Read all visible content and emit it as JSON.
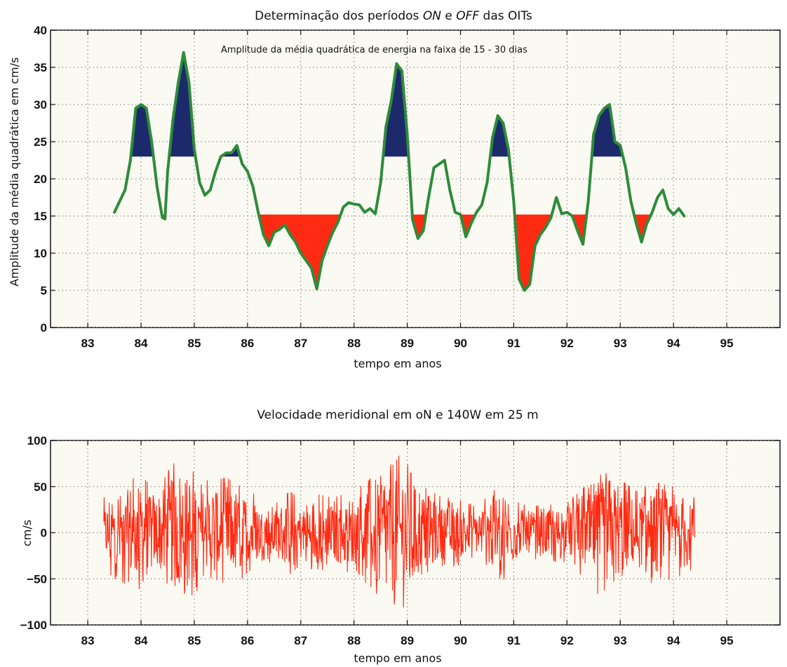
{
  "chart_data": [
    {
      "type": "area",
      "title": {
        "prefix": "Determinação dos períodos ",
        "on": "ON",
        "middle": " e ",
        "off": "OFF",
        "suffix": " das OITs"
      },
      "annotation": "Amplitude da média quadrática de energia na faixa de 15 - 30 dias",
      "xlabel": "tempo em anos",
      "ylabel": "Amplitude da média quadrática em cm/s",
      "xlim": [
        82.3,
        96.0
      ],
      "ylim": [
        0,
        40
      ],
      "x_ticks": [
        "83",
        "84",
        "85",
        "86",
        "87",
        "88",
        "89",
        "90",
        "91",
        "92",
        "93",
        "94",
        "95"
      ],
      "y_ticks": [
        "0",
        "5",
        "10",
        "15",
        "20",
        "25",
        "30",
        "35",
        "40"
      ],
      "grid": true,
      "thresholds": {
        "on": 23,
        "off": 15.2
      },
      "colors": {
        "line": "#2e8b3a",
        "on_fill": "#1c2a6b",
        "off_fill": "#ff2a12"
      },
      "series": [
        {
          "x": [
            83.5,
            83.6,
            83.7,
            83.8,
            83.9,
            84.0,
            84.1,
            84.2,
            84.3,
            84.4,
            84.45,
            84.5,
            84.6,
            84.7,
            84.8,
            84.9,
            85.0,
            85.1,
            85.2,
            85.3,
            85.4,
            85.5,
            85.6,
            85.7,
            85.8,
            85.9,
            86.0,
            86.1,
            86.2,
            86.3,
            86.4,
            86.5,
            86.6,
            86.7,
            86.8,
            86.9,
            87.0,
            87.1,
            87.2,
            87.3,
            87.4,
            87.5,
            87.6,
            87.7,
            87.8,
            87.9,
            88.0,
            88.1,
            88.2,
            88.3,
            88.4,
            88.5,
            88.6,
            88.7,
            88.8,
            88.9,
            89.0,
            89.1,
            89.2,
            89.3,
            89.4,
            89.5,
            89.6,
            89.7,
            89.8,
            89.9,
            90.0,
            90.1,
            90.2,
            90.3,
            90.4,
            90.5,
            90.6,
            90.7,
            90.8,
            90.9,
            91.0,
            91.1,
            91.2,
            91.3,
            91.4,
            91.5,
            91.6,
            91.7,
            91.8,
            91.9,
            92.0,
            92.1,
            92.2,
            92.3,
            92.4,
            92.5,
            92.6,
            92.7,
            92.8,
            92.9,
            93.0,
            93.1,
            93.2,
            93.3,
            93.4,
            93.5,
            93.6,
            93.7,
            93.8,
            93.9,
            94.0,
            94.1,
            94.2
          ],
          "y": [
            15.5,
            17.0,
            18.5,
            22.5,
            29.5,
            30.0,
            29.5,
            25.0,
            19.0,
            14.8,
            14.6,
            21.0,
            28.0,
            33.0,
            37.0,
            33.0,
            24.0,
            19.5,
            17.8,
            18.5,
            21.0,
            23.0,
            23.5,
            23.5,
            24.5,
            22.0,
            21.0,
            19.0,
            15.5,
            12.5,
            11.0,
            12.8,
            13.2,
            13.8,
            12.5,
            11.5,
            10.0,
            9.0,
            8.0,
            5.2,
            9.0,
            11.0,
            12.8,
            14.2,
            16.2,
            16.8,
            16.6,
            16.5,
            15.5,
            16.0,
            15.3,
            19.5,
            27.0,
            30.5,
            35.5,
            34.5,
            26.0,
            14.5,
            12.0,
            13.0,
            17.5,
            21.5,
            22.0,
            22.5,
            18.5,
            15.5,
            15.2,
            12.2,
            14.0,
            15.5,
            16.5,
            19.5,
            25.5,
            28.5,
            27.5,
            24.0,
            17.0,
            6.5,
            5.0,
            5.8,
            11.0,
            12.5,
            13.5,
            14.8,
            17.5,
            15.3,
            15.5,
            15.0,
            13.0,
            11.2,
            17.0,
            26.0,
            28.5,
            29.5,
            30.0,
            25.0,
            24.5,
            21.5,
            17.0,
            14.0,
            11.5,
            14.0,
            15.5,
            17.5,
            18.5,
            16.0,
            15.2,
            16.0,
            15.0
          ]
        }
      ]
    },
    {
      "type": "line",
      "title": "Velocidade meridional em oN e 140W em 25 m",
      "xlabel": "tempo em anos",
      "ylabel": "cm/s",
      "xlim": [
        82.3,
        96.0
      ],
      "ylim": [
        -100,
        100
      ],
      "x_ticks": [
        "83",
        "84",
        "85",
        "86",
        "87",
        "88",
        "89",
        "90",
        "91",
        "92",
        "93",
        "94",
        "95"
      ],
      "y_ticks": [
        "100",
        "50",
        "0",
        "−50",
        "−100"
      ],
      "grid": true,
      "colors": {
        "line": "#ff2a12"
      },
      "envelope": {
        "x": [
          83.3,
          83.5,
          83.8,
          84.0,
          84.3,
          84.6,
          84.8,
          85.0,
          85.3,
          85.6,
          85.8,
          86.0,
          86.2,
          86.5,
          86.8,
          87.0,
          87.3,
          87.6,
          88.0,
          88.3,
          88.6,
          88.8,
          89.0,
          89.3,
          89.6,
          90.0,
          90.3,
          90.6,
          90.8,
          91.0,
          91.3,
          91.6,
          92.0,
          92.3,
          92.6,
          92.8,
          93.0,
          93.3,
          93.6,
          94.0,
          94.2,
          94.4
        ],
        "amplitude": [
          38,
          50,
          58,
          62,
          45,
          75,
          78,
          65,
          55,
          60,
          52,
          48,
          38,
          30,
          45,
          35,
          42,
          38,
          45,
          58,
          78,
          92,
          82,
          50,
          40,
          35,
          28,
          45,
          52,
          35,
          28,
          30,
          32,
          48,
          68,
          72,
          58,
          45,
          55,
          50,
          45,
          38
        ]
      }
    }
  ]
}
